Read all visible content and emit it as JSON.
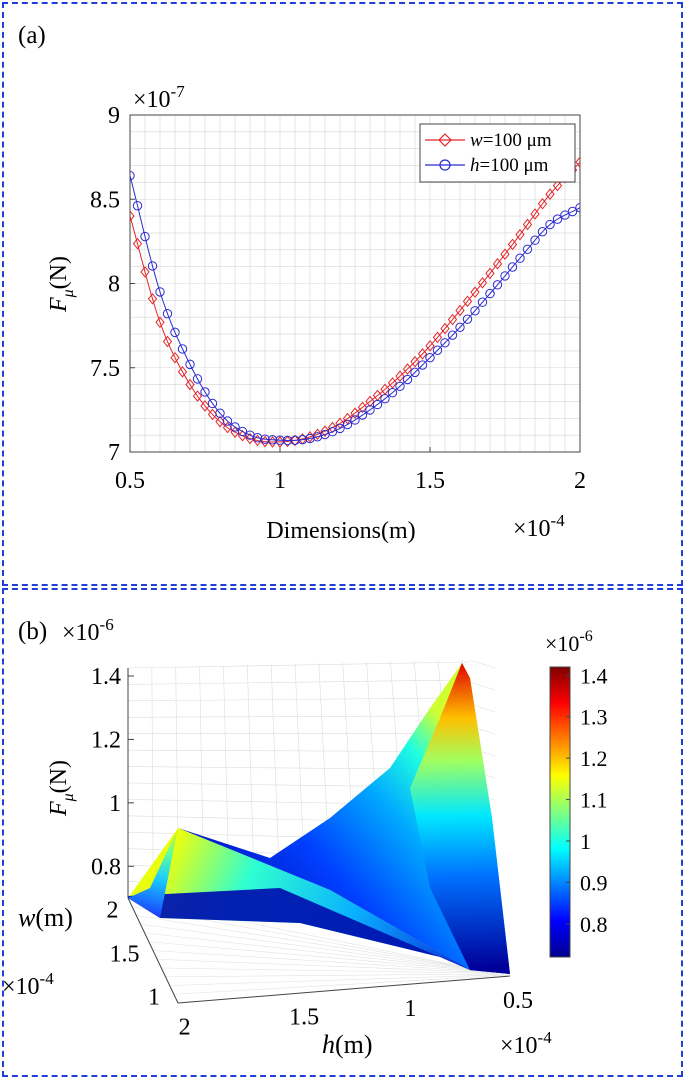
{
  "panel_a": {
    "label": "(a)",
    "x_exponent": "×10",
    "x_exponent_power": "-4",
    "y_exponent": "×10",
    "y_exponent_power": "-7",
    "xlabel": "Dimensions(m)",
    "ylabel_main": "F",
    "ylabel_sub": "μ",
    "ylabel_unit": "(N)"
  },
  "panel_b": {
    "label": "(b)",
    "z_exponent": "×10",
    "z_exponent_power": "-6",
    "zlabel_main": "F",
    "zlabel_sub": "μ",
    "zlabel_unit": "(N)",
    "w_label": "w",
    "w_unit": "(m)",
    "w_exponent": "×10",
    "w_exponent_power": "-4",
    "h_label": "h",
    "h_unit": "(m)",
    "h_exponent": "×10",
    "h_exponent_power": "-4",
    "colorbar_exponent": "×10",
    "colorbar_exponent_power": "-6"
  },
  "chart_data": [
    {
      "type": "line",
      "xlim": [
        0.5,
        2
      ],
      "ylim": [
        7,
        9
      ],
      "xticks": [
        "0.5",
        "1",
        "1.5",
        "2"
      ],
      "yticks": [
        "7",
        "7.5",
        "8",
        "8.5",
        "9"
      ],
      "grid": true,
      "legend_position": "top-right",
      "series": [
        {
          "name": "w=100 μm",
          "name_italic": "w",
          "name_rest": "=100 μm",
          "color": "#e3262a",
          "marker": "diamond",
          "x": [
            0.5,
            0.6,
            0.7,
            0.8,
            0.9,
            1.0,
            1.1,
            1.2,
            1.3,
            1.4,
            1.5,
            1.6,
            1.7,
            1.8,
            1.9,
            2.0
          ],
          "y": [
            8.4,
            7.77,
            7.4,
            7.18,
            7.08,
            7.06,
            7.09,
            7.17,
            7.3,
            7.45,
            7.63,
            7.84,
            8.06,
            8.29,
            8.53,
            8.72
          ]
        },
        {
          "name": "h=100 μm",
          "name_italic": "h",
          "name_rest": "=100 μm",
          "color": "#2b2bd1",
          "marker": "circle",
          "x": [
            0.5,
            0.6,
            0.7,
            0.8,
            0.9,
            1.0,
            1.1,
            1.2,
            1.3,
            1.4,
            1.5,
            1.6,
            1.7,
            1.8,
            1.9,
            2.0
          ],
          "y": [
            8.64,
            7.95,
            7.52,
            7.23,
            7.1,
            7.07,
            7.08,
            7.14,
            7.25,
            7.39,
            7.56,
            7.74,
            7.94,
            8.15,
            8.35,
            8.45
          ]
        }
      ]
    },
    {
      "type": "surface",
      "zlim": [
        0.7,
        1.4
      ],
      "zticks": [
        "0.8",
        "1",
        "1.2",
        "1.4"
      ],
      "w_ticks": [
        "1",
        "1.5",
        "2"
      ],
      "h_ticks": [
        "2",
        "1.5",
        "1",
        "0.5"
      ],
      "colorbar": {
        "ticks": [
          "0.8",
          "0.9",
          "1",
          "1.1",
          "1.2",
          "1.3",
          "1.4"
        ],
        "range": [
          0.72,
          1.42
        ],
        "colormap": "jet"
      },
      "corner_values": {
        "w_min_h_min": 1.42,
        "w_max_h_max": 0.88,
        "w_max_h_min": 0.72,
        "w_min_h_max": 0.72
      }
    }
  ]
}
